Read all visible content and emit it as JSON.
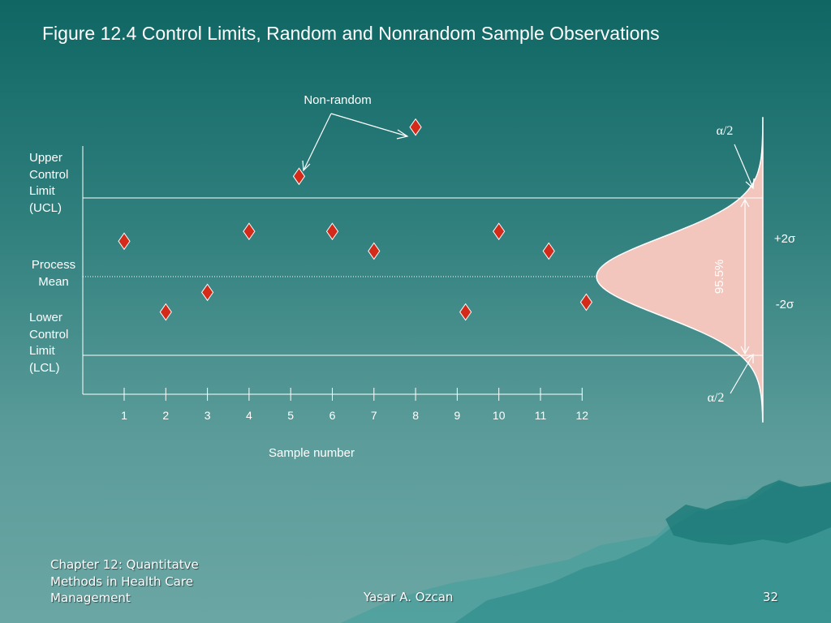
{
  "slide": {
    "title": "Figure 12.4 Control Limits, Random and Nonrandom Sample Observations"
  },
  "labels": {
    "ucl": [
      "Upper",
      "Control",
      "Limit",
      "(UCL)"
    ],
    "mean": [
      "Process",
      "Mean"
    ],
    "lcl": [
      "Lower",
      "Control",
      "Limit",
      "(LCL)"
    ],
    "annotation_nonrandom": "Non-random",
    "alpha_top": "α/2",
    "alpha_bottom": "α/2",
    "plus_2sigma": "+2σ",
    "minus_2sigma": "-2σ",
    "percent_95": "95.5%"
  },
  "chart_data": {
    "type": "scatter",
    "xlabel": "Sample number",
    "ylabel": "",
    "x": [
      1,
      2,
      3,
      4,
      5,
      6,
      7,
      8,
      9,
      10,
      11,
      12
    ],
    "x_positions": [
      1,
      2,
      3,
      4,
      5.2,
      6,
      7,
      8,
      9.2,
      10,
      11.2,
      12.1
    ],
    "y_sigma": [
      0.9,
      -0.9,
      -0.4,
      1.15,
      2.55,
      1.15,
      0.65,
      3.8,
      -0.9,
      1.15,
      0.65,
      -0.65
    ],
    "ylim": [
      -3.2,
      3.6
    ],
    "ucl": 2,
    "lcl": -2,
    "mean": 0,
    "nonrandom_points": [
      5,
      8
    ],
    "marker": "diamond",
    "marker_color": "#d42a1a",
    "distribution_fill": "#f2c6bd"
  },
  "footer": {
    "chapter": "Chapter 12: Quantitatve Methods in Health Care Management",
    "author": "Yasar A. Ozcan",
    "page": "32"
  }
}
